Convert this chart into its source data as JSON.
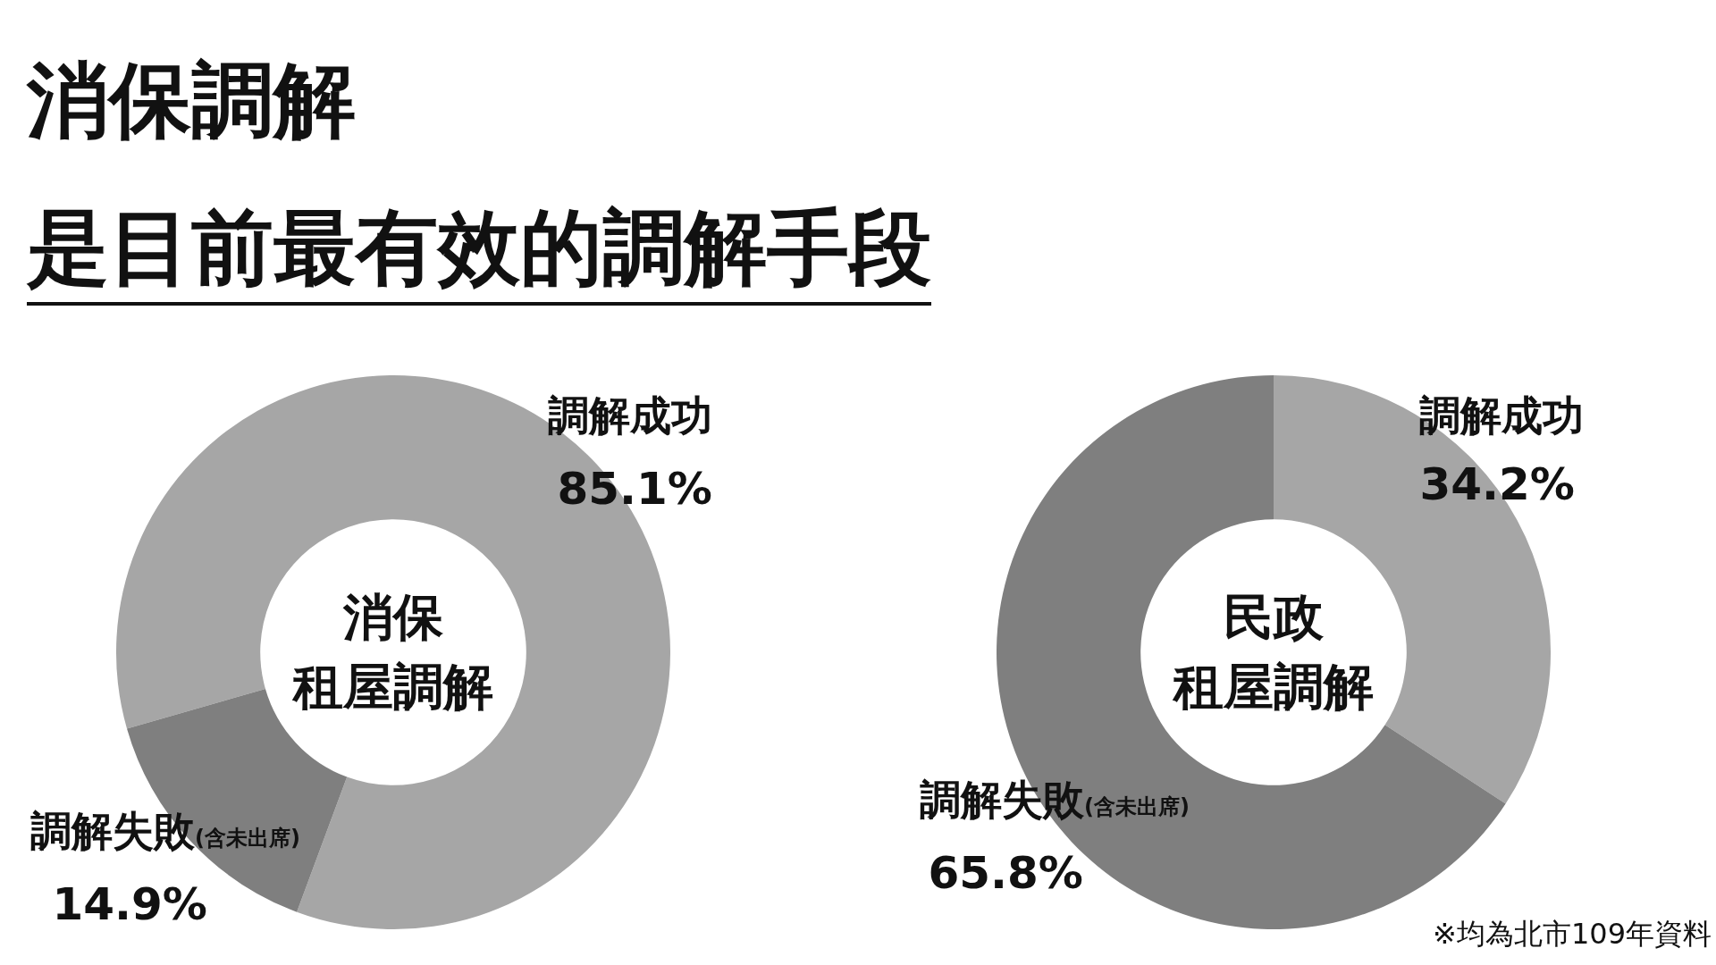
{
  "chart_data": [
    {
      "type": "donut",
      "title": "消保調解是目前最有效的調解手段",
      "subtitle": "消保租屋調解",
      "categories": [
        "調解成功",
        "調解失敗(含未出席)"
      ],
      "values": [
        85.1,
        14.9
      ],
      "value_labels": [
        "85.1%",
        "14.9%"
      ],
      "colors": [
        "#a6a6a6",
        "#7f7f7f"
      ],
      "legend": false
    },
    {
      "type": "donut",
      "subtitle": "民政租屋調解",
      "categories": [
        "調解成功",
        "調解失敗(含未出席)"
      ],
      "values": [
        34.2,
        65.8
      ],
      "value_labels": [
        "34.2%",
        "65.8%"
      ],
      "colors": [
        "#a6a6a6",
        "#7f7f7f"
      ],
      "legend": false,
      "annotations": [
        "※均為北市109年資料"
      ]
    }
  ]
}
